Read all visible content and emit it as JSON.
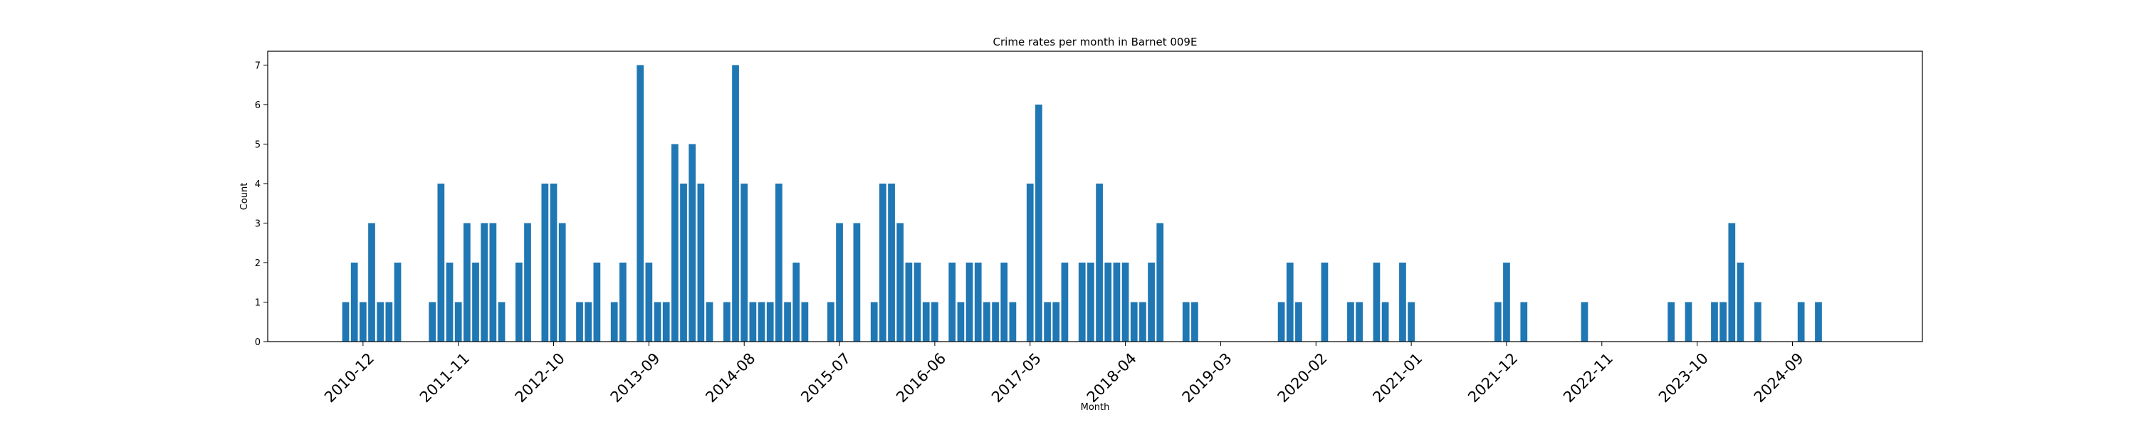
{
  "chart_data": {
    "type": "bar",
    "title": "Crime rates per month in Barnet 009E",
    "xlabel": "Month",
    "ylabel": "Count",
    "ylim": [
      0,
      7.35
    ],
    "yticks": [
      0,
      1,
      2,
      3,
      4,
      5,
      6,
      7
    ],
    "xlim": [
      "2010-01",
      "2025-12"
    ],
    "xtick_labels": [
      "2010-12",
      "2011-11",
      "2012-10",
      "2013-09",
      "2014-08",
      "2015-07",
      "2016-06",
      "2017-05",
      "2018-04",
      "2019-03",
      "2020-02",
      "2021-01",
      "2021-12",
      "2022-11",
      "2023-10",
      "2024-09"
    ],
    "grid": false,
    "bar_color": "#1f77b4",
    "data": [
      {
        "month": "2010-10",
        "value": 1
      },
      {
        "month": "2010-11",
        "value": 2
      },
      {
        "month": "2010-12",
        "value": 1
      },
      {
        "month": "2011-01",
        "value": 3
      },
      {
        "month": "2011-02",
        "value": 1
      },
      {
        "month": "2011-03",
        "value": 1
      },
      {
        "month": "2011-04",
        "value": 2
      },
      {
        "month": "2011-08",
        "value": 1
      },
      {
        "month": "2011-09",
        "value": 4
      },
      {
        "month": "2011-10",
        "value": 2
      },
      {
        "month": "2011-11",
        "value": 1
      },
      {
        "month": "2011-12",
        "value": 3
      },
      {
        "month": "2012-01",
        "value": 2
      },
      {
        "month": "2012-02",
        "value": 3
      },
      {
        "month": "2012-03",
        "value": 3
      },
      {
        "month": "2012-04",
        "value": 1
      },
      {
        "month": "2012-06",
        "value": 2
      },
      {
        "month": "2012-07",
        "value": 3
      },
      {
        "month": "2012-09",
        "value": 4
      },
      {
        "month": "2012-10",
        "value": 4
      },
      {
        "month": "2012-11",
        "value": 3
      },
      {
        "month": "2013-01",
        "value": 1
      },
      {
        "month": "2013-02",
        "value": 1
      },
      {
        "month": "2013-03",
        "value": 2
      },
      {
        "month": "2013-05",
        "value": 1
      },
      {
        "month": "2013-06",
        "value": 2
      },
      {
        "month": "2013-08",
        "value": 7
      },
      {
        "month": "2013-09",
        "value": 2
      },
      {
        "month": "2013-10",
        "value": 1
      },
      {
        "month": "2013-11",
        "value": 1
      },
      {
        "month": "2013-12",
        "value": 5
      },
      {
        "month": "2014-01",
        "value": 4
      },
      {
        "month": "2014-02",
        "value": 5
      },
      {
        "month": "2014-03",
        "value": 4
      },
      {
        "month": "2014-04",
        "value": 1
      },
      {
        "month": "2014-06",
        "value": 1
      },
      {
        "month": "2014-07",
        "value": 7
      },
      {
        "month": "2014-08",
        "value": 4
      },
      {
        "month": "2014-09",
        "value": 1
      },
      {
        "month": "2014-10",
        "value": 1
      },
      {
        "month": "2014-11",
        "value": 1
      },
      {
        "month": "2014-12",
        "value": 4
      },
      {
        "month": "2015-01",
        "value": 1
      },
      {
        "month": "2015-02",
        "value": 2
      },
      {
        "month": "2015-03",
        "value": 1
      },
      {
        "month": "2015-06",
        "value": 1
      },
      {
        "month": "2015-07",
        "value": 3
      },
      {
        "month": "2015-09",
        "value": 3
      },
      {
        "month": "2015-11",
        "value": 1
      },
      {
        "month": "2015-12",
        "value": 4
      },
      {
        "month": "2016-01",
        "value": 4
      },
      {
        "month": "2016-02",
        "value": 3
      },
      {
        "month": "2016-03",
        "value": 2
      },
      {
        "month": "2016-04",
        "value": 2
      },
      {
        "month": "2016-05",
        "value": 1
      },
      {
        "month": "2016-06",
        "value": 1
      },
      {
        "month": "2016-08",
        "value": 2
      },
      {
        "month": "2016-09",
        "value": 1
      },
      {
        "month": "2016-10",
        "value": 2
      },
      {
        "month": "2016-11",
        "value": 2
      },
      {
        "month": "2016-12",
        "value": 1
      },
      {
        "month": "2017-01",
        "value": 1
      },
      {
        "month": "2017-02",
        "value": 2
      },
      {
        "month": "2017-03",
        "value": 1
      },
      {
        "month": "2017-05",
        "value": 4
      },
      {
        "month": "2017-06",
        "value": 6
      },
      {
        "month": "2017-07",
        "value": 1
      },
      {
        "month": "2017-08",
        "value": 1
      },
      {
        "month": "2017-09",
        "value": 2
      },
      {
        "month": "2017-11",
        "value": 2
      },
      {
        "month": "2017-12",
        "value": 2
      },
      {
        "month": "2018-01",
        "value": 4
      },
      {
        "month": "2018-02",
        "value": 2
      },
      {
        "month": "2018-03",
        "value": 2
      },
      {
        "month": "2018-04",
        "value": 2
      },
      {
        "month": "2018-05",
        "value": 1
      },
      {
        "month": "2018-06",
        "value": 1
      },
      {
        "month": "2018-07",
        "value": 2
      },
      {
        "month": "2018-08",
        "value": 3
      },
      {
        "month": "2018-11",
        "value": 1
      },
      {
        "month": "2018-12",
        "value": 1
      },
      {
        "month": "2019-10",
        "value": 1
      },
      {
        "month": "2019-11",
        "value": 2
      },
      {
        "month": "2019-12",
        "value": 1
      },
      {
        "month": "2020-03",
        "value": 2
      },
      {
        "month": "2020-06",
        "value": 1
      },
      {
        "month": "2020-07",
        "value": 1
      },
      {
        "month": "2020-09",
        "value": 2
      },
      {
        "month": "2020-10",
        "value": 1
      },
      {
        "month": "2020-12",
        "value": 2
      },
      {
        "month": "2021-01",
        "value": 1
      },
      {
        "month": "2021-11",
        "value": 1
      },
      {
        "month": "2021-12",
        "value": 2
      },
      {
        "month": "2022-02",
        "value": 1
      },
      {
        "month": "2022-09",
        "value": 1
      },
      {
        "month": "2023-07",
        "value": 1
      },
      {
        "month": "2023-09",
        "value": 1
      },
      {
        "month": "2023-12",
        "value": 1
      },
      {
        "month": "2024-01",
        "value": 1
      },
      {
        "month": "2024-02",
        "value": 3
      },
      {
        "month": "2024-03",
        "value": 2
      },
      {
        "month": "2024-05",
        "value": 1
      },
      {
        "month": "2024-10",
        "value": 1
      },
      {
        "month": "2024-12",
        "value": 1
      }
    ]
  }
}
